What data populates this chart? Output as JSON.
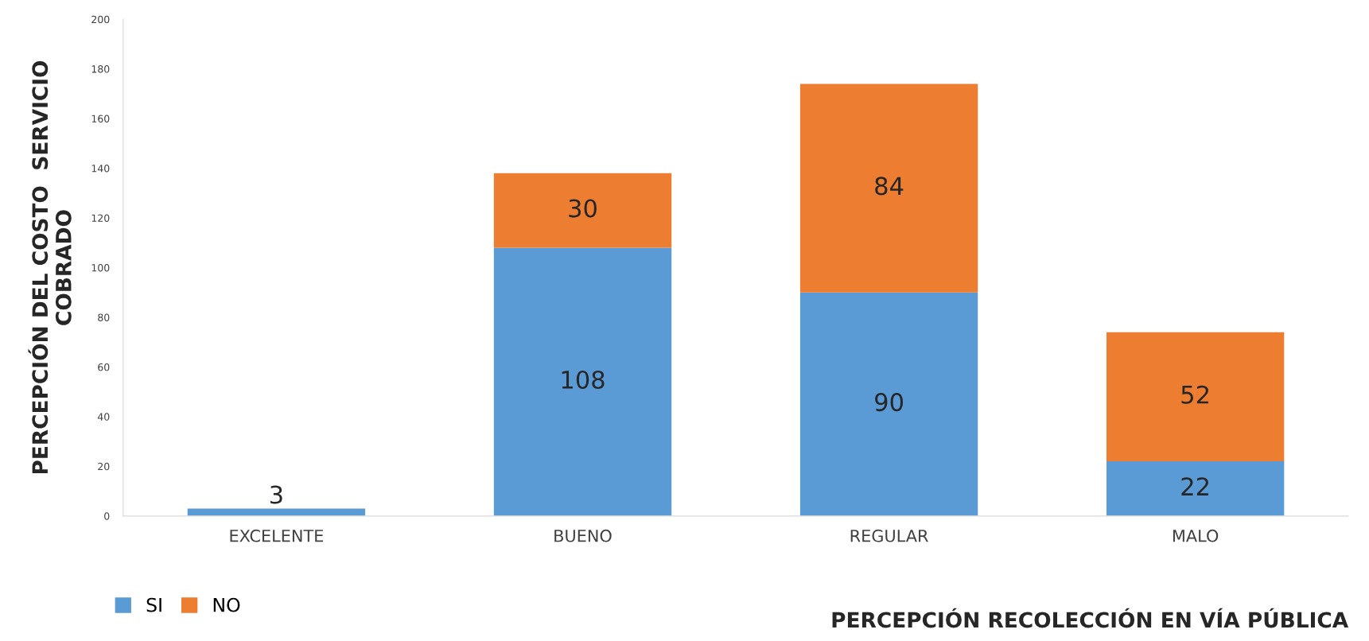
{
  "chart_data": {
    "type": "bar",
    "stacked": true,
    "xlabel": "PERCEPCIÓN RECOLECCIÓN EN VÍA PÚBLICA",
    "ylabel": "PERCEPCIÓN DEL COSTO  SERVICIO\nCOBRADO",
    "categories": [
      "EXCELENTE",
      "BUENO",
      "REGULAR",
      "MALO"
    ],
    "series": [
      {
        "name": "SI",
        "color": "#5b9bd5",
        "values": [
          3,
          108,
          90,
          22
        ]
      },
      {
        "name": "NO",
        "color": "#ed7d31",
        "values": [
          null,
          30,
          84,
          52
        ]
      }
    ],
    "ylim": [
      0,
      200
    ],
    "yticks": [
      0,
      20,
      40,
      60,
      80,
      100,
      120,
      140,
      160,
      180,
      200
    ],
    "data_labels": true,
    "legend": "bottom left",
    "grid": false
  }
}
